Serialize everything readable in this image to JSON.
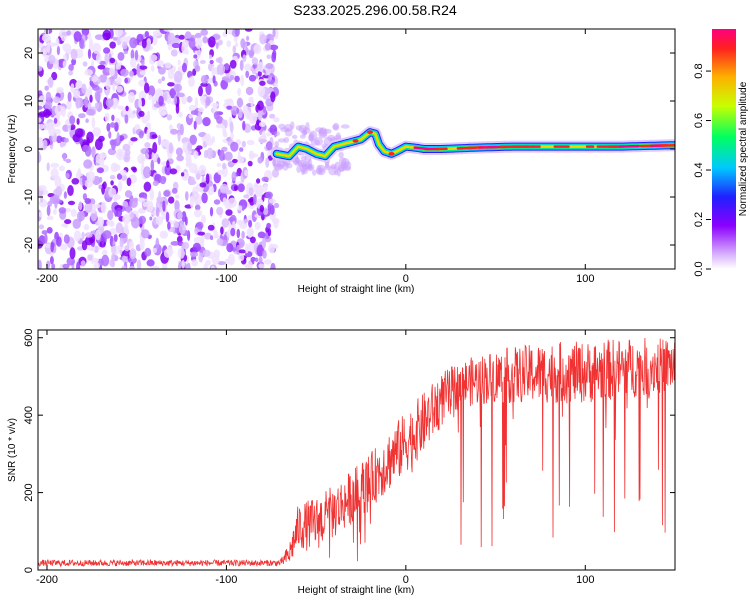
{
  "title": "S233.2025.296.00.58.R24",
  "chart_data": [
    {
      "type": "heatmap",
      "name": "spectrogram",
      "xlabel": "Height of straight line (km)",
      "ylabel": "Frequency (Hz)",
      "xlim": [
        -205,
        150
      ],
      "ylim": [
        -25,
        25
      ],
      "xticks": [
        -200,
        -100,
        0,
        100
      ],
      "yticks": [
        -20,
        -10,
        0,
        10,
        20
      ],
      "noise_region_x": [
        -205,
        -72
      ],
      "ridge": {
        "x": [
          -72,
          -65,
          -60,
          -55,
          -50,
          -45,
          -40,
          -35,
          -30,
          -25,
          -20,
          -17,
          -15,
          -12,
          -8,
          -5,
          0,
          5,
          10,
          20,
          40,
          60,
          80,
          100,
          120,
          150
        ],
        "y": [
          -1,
          -1.5,
          0.5,
          0,
          -1,
          -1.5,
          0.5,
          1.0,
          1.5,
          2.0,
          3.5,
          3.2,
          1.0,
          -0.5,
          -1.0,
          -0.5,
          0.5,
          0.3,
          0.0,
          0.0,
          0.3,
          0.5,
          0.5,
          0.5,
          0.5,
          0.8
        ]
      },
      "colorbar": {
        "label": "Normalized spectral amplitude",
        "ticks": [
          0.0,
          0.2,
          0.4,
          0.6,
          0.8
        ],
        "range": [
          0,
          0.97
        ]
      }
    },
    {
      "type": "line",
      "name": "snr",
      "xlabel": "Height of straight line (km)",
      "ylabel": "SNR (10 * v/v)",
      "xlim": [
        -205,
        150
      ],
      "ylim": [
        0,
        620
      ],
      "xticks": [
        -200,
        -100,
        0,
        100
      ],
      "yticks": [
        0,
        200,
        400,
        600
      ],
      "color": "#f03232",
      "envelope": {
        "x": [
          -205,
          -70,
          -65,
          -60,
          -50,
          -40,
          -30,
          -20,
          -10,
          0,
          10,
          20,
          30,
          50,
          80,
          100,
          120,
          150
        ],
        "mean": [
          18,
          18,
          40,
          110,
          120,
          150,
          190,
          230,
          280,
          330,
          380,
          440,
          480,
          500,
          510,
          510,
          520,
          530
        ],
        "spread": [
          8,
          8,
          30,
          60,
          70,
          70,
          70,
          70,
          80,
          80,
          80,
          70,
          60,
          70,
          80,
          80,
          80,
          70
        ]
      }
    }
  ]
}
